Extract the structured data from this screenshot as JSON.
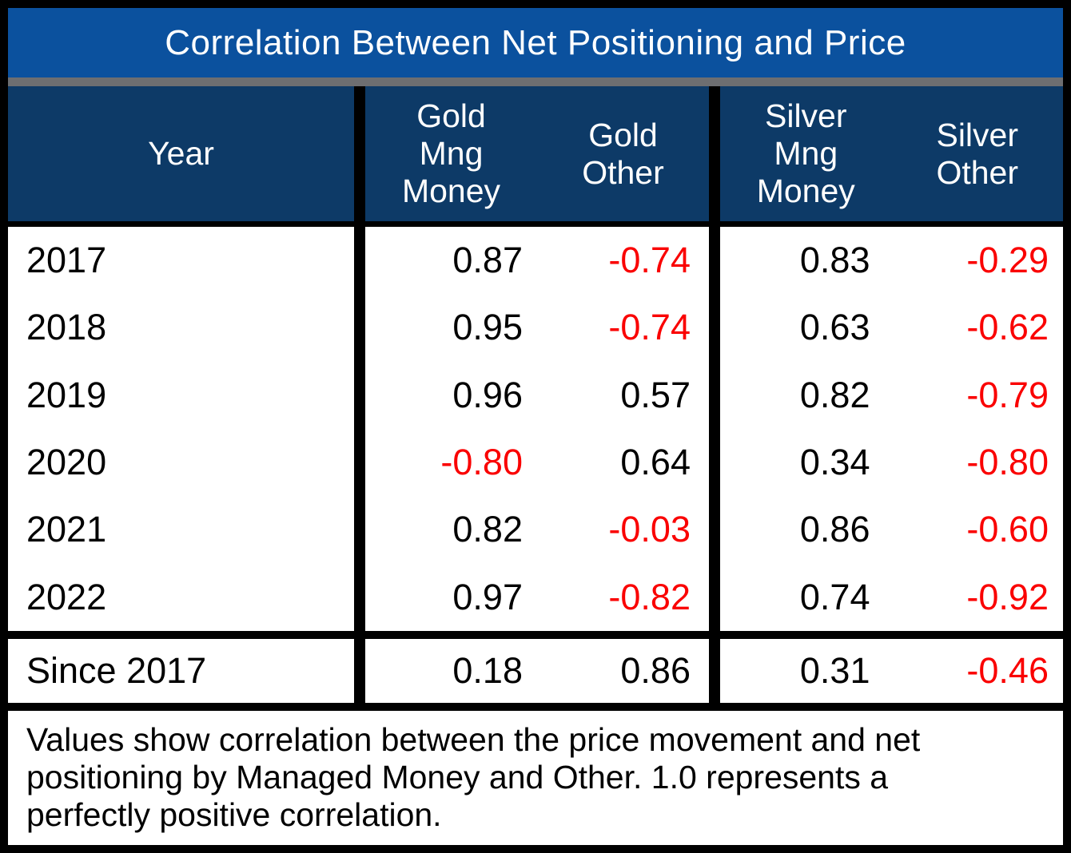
{
  "title": "Correlation Between Net Positioning and Price",
  "headers": {
    "year": "Year",
    "gold_mng_money": "Gold\nMng\nMoney",
    "gold_other": "Gold\nOther",
    "silver_mng_money": "Silver\nMng\nMoney",
    "silver_other": "Silver\nOther"
  },
  "table": {
    "rows": [
      {
        "year": "2017",
        "gold_mng_money": "0.87",
        "gold_other": "-0.74",
        "silver_mng_money": "0.83",
        "silver_other": "-0.29"
      },
      {
        "year": "2018",
        "gold_mng_money": "0.95",
        "gold_other": "-0.74",
        "silver_mng_money": "0.63",
        "silver_other": "-0.62"
      },
      {
        "year": "2019",
        "gold_mng_money": "0.96",
        "gold_other": "0.57",
        "silver_mng_money": "0.82",
        "silver_other": "-0.79"
      },
      {
        "year": "2020",
        "gold_mng_money": "-0.80",
        "gold_other": "0.64",
        "silver_mng_money": "0.34",
        "silver_other": "-0.80"
      },
      {
        "year": "2021",
        "gold_mng_money": "0.82",
        "gold_other": "-0.03",
        "silver_mng_money": "0.86",
        "silver_other": "-0.60"
      },
      {
        "year": "2022",
        "gold_mng_money": "0.97",
        "gold_other": "-0.82",
        "silver_mng_money": "0.74",
        "silver_other": "-0.92"
      }
    ],
    "summary_row": {
      "year": "Since 2017",
      "gold_mng_money": "0.18",
      "gold_other": "0.86",
      "silver_mng_money": "0.31",
      "silver_other": "-0.46"
    }
  },
  "footnote": "Values show correlation between the price movement and net\npositioning by Managed Money and Other. 1.0 represents a\nperfectly positive correlation.",
  "colors": {
    "title_bar_blue": "#0b519e",
    "header_navy": "#0d3a67",
    "divider_gray": "#6d6e71",
    "negative_red": "#fa0000",
    "positive_black": "#000000",
    "table_bg_black": "#000000",
    "cell_white": "#ffffff"
  },
  "chart_data": {
    "type": "table",
    "title": "Correlation Between Net Positioning and Price",
    "columns": [
      "Year",
      "Gold Mng Money",
      "Gold Other",
      "Silver Mng Money",
      "Silver Other"
    ],
    "rows": [
      [
        "2017",
        0.87,
        -0.74,
        0.83,
        -0.29
      ],
      [
        "2018",
        0.95,
        -0.74,
        0.63,
        -0.62
      ],
      [
        "2019",
        0.96,
        0.57,
        0.82,
        -0.79
      ],
      [
        "2020",
        -0.8,
        0.64,
        0.34,
        -0.8
      ],
      [
        "2021",
        0.82,
        -0.03,
        0.86,
        -0.6
      ],
      [
        "2022",
        0.97,
        -0.82,
        0.74,
        -0.92
      ],
      [
        "Since 2017",
        0.18,
        0.86,
        0.31,
        -0.46
      ]
    ],
    "notes": "Values show correlation between the price movement and net positioning by Managed Money and Other. 1.0 represents a perfectly positive correlation. Negative values are shown in red.",
    "legend_position": "none",
    "grid": false
  }
}
